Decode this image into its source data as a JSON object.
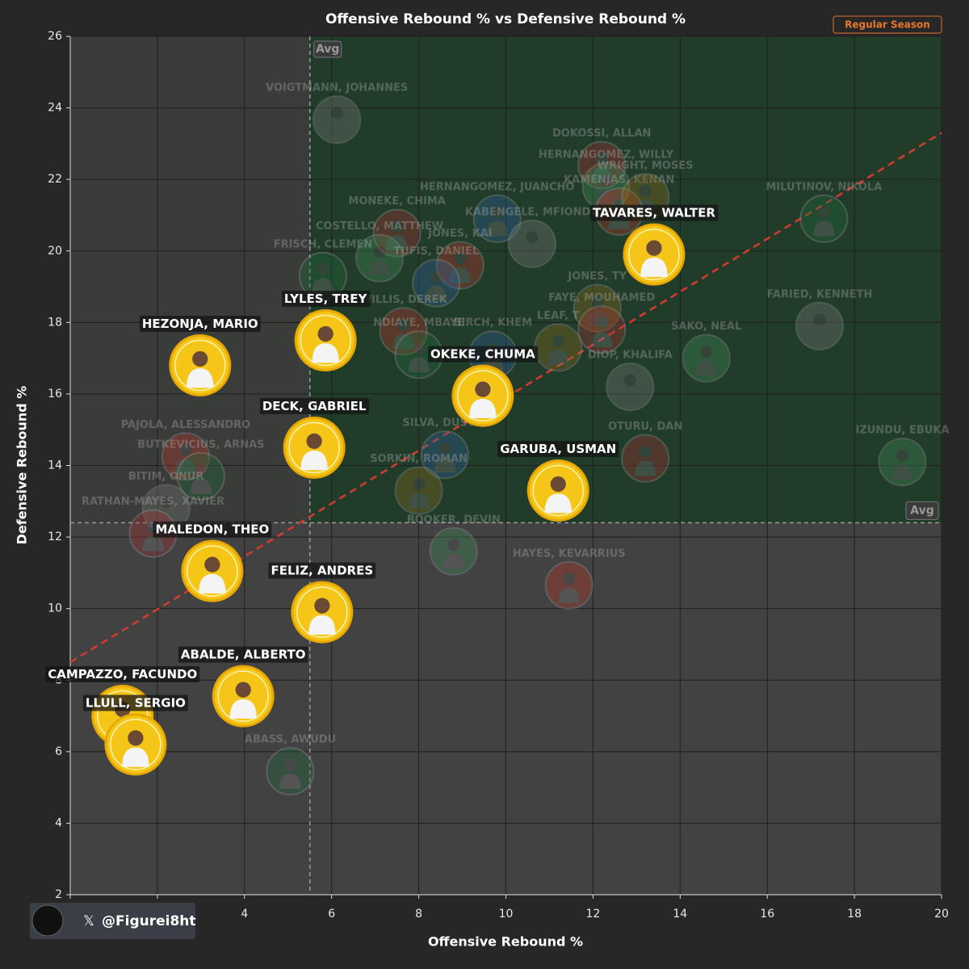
{
  "chart_data": {
    "type": "scatter",
    "title": "Offensive Rebound % vs Defensive Rebound %",
    "x_label": "Offensive Rebound %",
    "y_label": "Defensive Rebound %",
    "badge": "Regular Season",
    "watermark": "@Figurei8ht",
    "watermark_logo": "𝕏",
    "avg_label": "Avg",
    "avg_x": 5.5,
    "avg_y": 12.4,
    "xlim": [
      0,
      20
    ],
    "ylim": [
      2,
      26
    ],
    "xticks": [
      0,
      2,
      4,
      6,
      8,
      10,
      12,
      14,
      16,
      18,
      20
    ],
    "yticks": [
      2,
      4,
      6,
      8,
      10,
      12,
      14,
      16,
      18,
      20,
      22,
      24,
      26
    ],
    "grid": true,
    "trendline": {
      "x": [
        0,
        20
      ],
      "y": [
        8.5,
        23.3
      ],
      "color": "#d63a2f"
    },
    "highlight_color": "#f5c518",
    "players": [
      {
        "name": "TAVARES, WALTER",
        "x": 13.4,
        "y": 19.9,
        "highlight": true
      },
      {
        "name": "LYLES, TREY",
        "x": 5.86,
        "y": 17.5,
        "highlight": true
      },
      {
        "name": "HEZONJA, MARIO",
        "x": 2.98,
        "y": 16.8,
        "highlight": true
      },
      {
        "name": "OKEKE, CHUMA",
        "x": 9.47,
        "y": 15.95,
        "highlight": true
      },
      {
        "name": "DECK, GABRIEL",
        "x": 5.6,
        "y": 14.5,
        "highlight": true
      },
      {
        "name": "GARUBA, USMAN",
        "x": 11.2,
        "y": 13.3,
        "highlight": true
      },
      {
        "name": "MALEDON, THEO",
        "x": 3.26,
        "y": 11.05,
        "highlight": true
      },
      {
        "name": "FELIZ, ANDRES",
        "x": 5.78,
        "y": 9.9,
        "highlight": true
      },
      {
        "name": "ABALDE, ALBERTO",
        "x": 3.97,
        "y": 7.55,
        "highlight": true
      },
      {
        "name": "CAMPAZZO, FACUNDO",
        "x": 1.2,
        "y": 7.0,
        "highlight": true
      },
      {
        "name": "LLULL, SERGIO",
        "x": 1.5,
        "y": 6.2,
        "highlight": true
      },
      {
        "name": "VOIGTMANN, JOHANNES",
        "x": 6.12,
        "y": 23.67,
        "highlight": false
      },
      {
        "name": "DOKOSSI, ALLAN",
        "x": 12.2,
        "y": 22.4,
        "highlight": false
      },
      {
        "name": "HERNANGOMEZ, WILLY",
        "x": 12.3,
        "y": 21.8,
        "highlight": false
      },
      {
        "name": "KAMENJAS, KENAN",
        "x": 12.6,
        "y": 21.1,
        "highlight": false
      },
      {
        "name": "MILUTINOV, NIKOLA",
        "x": 17.3,
        "y": 20.9,
        "highlight": false
      },
      {
        "name": "HERNANGOMEZ, JUANCHO",
        "x": 9.8,
        "y": 20.9,
        "highlight": false
      },
      {
        "name": "WRIGHT, MOSES",
        "x": 13.2,
        "y": 21.5,
        "highlight": false
      },
      {
        "name": "KABENGELE, MFIONDU",
        "x": 10.6,
        "y": 20.2,
        "highlight": false
      },
      {
        "name": "MONEKE, CHIMA",
        "x": 7.5,
        "y": 20.5,
        "highlight": false
      },
      {
        "name": "COSTELLO, MATTHEW",
        "x": 7.1,
        "y": 19.8,
        "highlight": false
      },
      {
        "name": "JONES, KAI",
        "x": 8.95,
        "y": 19.6,
        "highlight": false
      },
      {
        "name": "FRISCH, CLEMEN",
        "x": 5.8,
        "y": 19.3,
        "highlight": false
      },
      {
        "name": "TUFIS, DANIEL",
        "x": 8.4,
        "y": 19.1,
        "highlight": false
      },
      {
        "name": "JONES, TY",
        "x": 12.1,
        "y": 18.4,
        "highlight": false
      },
      {
        "name": "FARIED, KENNETH",
        "x": 17.2,
        "y": 17.9,
        "highlight": false
      },
      {
        "name": "FAYE, MOUHAMED",
        "x": 12.2,
        "y": 17.8,
        "highlight": false
      },
      {
        "name": "SAKO, NEAL",
        "x": 14.6,
        "y": 17.0,
        "highlight": false
      },
      {
        "name": "WILLIS, DEREK",
        "x": 7.65,
        "y": 17.75,
        "highlight": false
      },
      {
        "name": "NDIAYE, MBAYE",
        "x": 8.0,
        "y": 17.1,
        "highlight": false
      },
      {
        "name": "BIRCH, KHEM",
        "x": 9.7,
        "y": 17.1,
        "highlight": false
      },
      {
        "name": "LEAF, T",
        "x": 11.2,
        "y": 17.3,
        "highlight": false
      },
      {
        "name": "DIOP, KHALIFA",
        "x": 12.85,
        "y": 16.2,
        "highlight": false
      },
      {
        "name": "OTURU, DAN",
        "x": 13.2,
        "y": 14.2,
        "highlight": false
      },
      {
        "name": "IZUNDU, EBUKA",
        "x": 19.1,
        "y": 14.1,
        "highlight": false
      },
      {
        "name": "PAJOLA, ALESSANDRO",
        "x": 2.65,
        "y": 14.25,
        "highlight": false
      },
      {
        "name": "BUTKEVICIUS, ARNAS",
        "x": 3.0,
        "y": 13.7,
        "highlight": false
      },
      {
        "name": "SILVA, DUSTIN",
        "x": 8.6,
        "y": 14.3,
        "highlight": false
      },
      {
        "name": "SORKIN, ROMAN",
        "x": 8.0,
        "y": 13.3,
        "highlight": false
      },
      {
        "name": "BITIM, ONUR",
        "x": 2.2,
        "y": 12.8,
        "highlight": false
      },
      {
        "name": "RATHAN-MAYES, XAVIER",
        "x": 1.9,
        "y": 12.1,
        "highlight": false
      },
      {
        "name": "BOOKER, DEVIN",
        "x": 8.8,
        "y": 11.6,
        "highlight": false
      },
      {
        "name": "HAYES, KEVARRIUS",
        "x": 11.45,
        "y": 10.65,
        "highlight": false
      },
      {
        "name": "ABASS, AWUDU",
        "x": 5.05,
        "y": 5.45,
        "highlight": false
      }
    ]
  }
}
